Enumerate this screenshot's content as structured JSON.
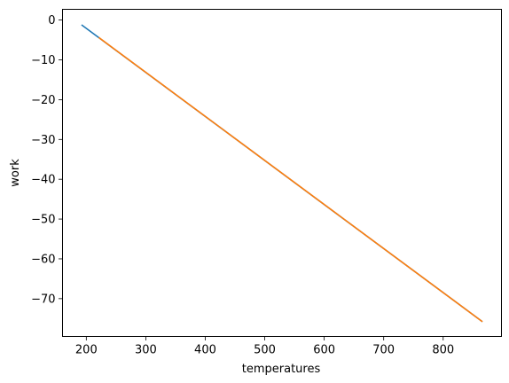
{
  "chart_data": {
    "type": "line",
    "title": "",
    "xlabel": "temperatures",
    "ylabel": "work",
    "xlim": [
      160,
      898
    ],
    "ylim": [
      -79.5,
      2.7
    ],
    "xticks": [
      200,
      300,
      400,
      500,
      600,
      700,
      800
    ],
    "xtick_labels": [
      "200",
      "300",
      "400",
      "500",
      "600",
      "700",
      "800"
    ],
    "yticks": [
      0,
      -10,
      -20,
      -30,
      -40,
      -50,
      -60,
      -70
    ],
    "ytick_labels": [
      "0",
      "−10",
      "−20",
      "−30",
      "−40",
      "−50",
      "−60",
      "−70"
    ],
    "grid": false,
    "legend": "none",
    "series": [
      {
        "color": "#1f77b4",
        "x": [
          193,
          865
        ],
        "y": [
          -1.3,
          -75.7
        ]
      },
      {
        "color": "#ff7f0e",
        "x": [
          222,
          865
        ],
        "y": [
          -4.5,
          -75.7
        ]
      }
    ]
  }
}
